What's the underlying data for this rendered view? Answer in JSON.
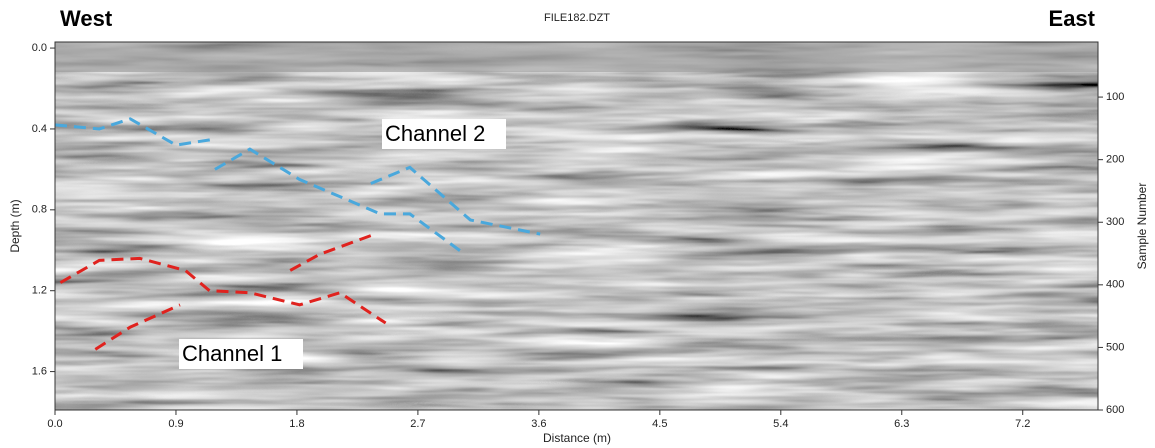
{
  "chart_data": {
    "type": "radargram",
    "title": "FILE182.DZT",
    "left_label": "West",
    "right_label": "East",
    "x_label": "Distance (m)",
    "y_label": "Depth (m)",
    "y2_label": "Sample Number",
    "annotations": [
      "Channel 2",
      "Channel 1"
    ],
    "xlim": [
      0,
      7.76
    ],
    "xticks": [
      {
        "value": 0,
        "label": "0.0"
      },
      0.9,
      1.8,
      2.7,
      3.6,
      4.5,
      5.4,
      6.3,
      7.2
    ],
    "ylim": [
      -0.03,
      1.79
    ],
    "yticks": [
      {
        "value": 0,
        "label": "0.0"
      },
      0.4,
      0.8,
      1.2,
      1.6
    ],
    "y2lim": [
      12,
      600
    ],
    "y2ticks": [
      100,
      200,
      300,
      400,
      500,
      600
    ],
    "interpretations": [
      {
        "color": "#4aa8dc",
        "x": [
          0,
          0.33,
          0.56,
          0.9,
          1.19
        ],
        "y": [
          0.38,
          0.4,
          0.35,
          0.48,
          0.45
        ]
      },
      {
        "color": "#4aa8dc",
        "x": [
          1.19,
          1.45,
          1.82,
          2.42,
          2.64,
          3.05
        ],
        "y": [
          0.6,
          0.5,
          0.65,
          0.82,
          0.82,
          1.02
        ]
      },
      {
        "color": "#4aa8dc",
        "x": [
          2.35,
          2.64,
          3.09,
          3.61
        ],
        "y": [
          0.67,
          0.59,
          0.85,
          0.92
        ]
      },
      {
        "color": "#e0221e",
        "x": [
          0.04,
          0.33,
          0.63,
          0.97,
          1.15,
          1.45,
          1.82,
          2.12,
          2.46
        ],
        "y": [
          1.16,
          1.05,
          1.04,
          1.1,
          1.2,
          1.21,
          1.27,
          1.21,
          1.36
        ]
      },
      {
        "color": "#e0221e",
        "x": [
          1.75,
          1.97,
          2.38
        ],
        "y": [
          1.1,
          1.02,
          0.92
        ]
      },
      {
        "color": "#e0221e",
        "x": [
          0.3,
          0.56,
          0.93
        ],
        "y": [
          1.49,
          1.38,
          1.27
        ]
      }
    ]
  }
}
